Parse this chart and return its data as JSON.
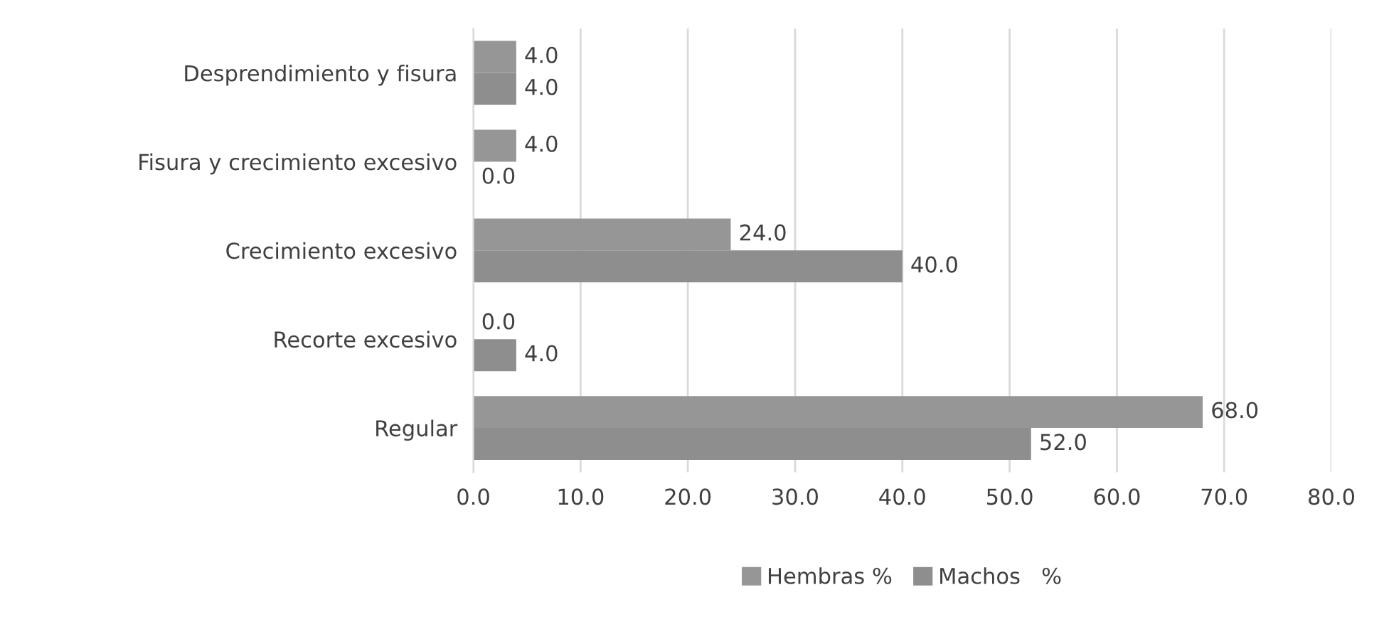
{
  "chart_data": {
    "type": "bar",
    "orientation": "horizontal",
    "categories": [
      "Desprendimiento y fisura",
      "Fisura y crecimiento excesivo",
      "Crecimiento excesivo",
      "Recorte excesivo",
      "Regular"
    ],
    "series": [
      {
        "name": "Hembras %",
        "color": "#969696",
        "values": [
          4,
          4,
          24,
          0,
          68
        ],
        "value_labels": [
          "4.0",
          "4.0",
          "24.0",
          "0.0",
          "68.0"
        ]
      },
      {
        "name": "Machos   %",
        "color": "#8e8e8e",
        "values": [
          4,
          0,
          40,
          4,
          52
        ],
        "value_labels": [
          "4.0",
          "0.0",
          "40.0",
          "4.0",
          "52.0"
        ]
      }
    ],
    "xlim": [
      0,
      80
    ],
    "xticks": [
      {
        "value": 0,
        "label": "0.0"
      },
      {
        "value": 10,
        "label": "10.0"
      },
      {
        "value": 20,
        "label": "20.0"
      },
      {
        "value": 30,
        "label": "30.0"
      },
      {
        "value": 40,
        "label": "40.0"
      },
      {
        "value": 50,
        "label": "50.0"
      },
      {
        "value": 60,
        "label": "60.0"
      },
      {
        "value": 70,
        "label": "70.0"
      },
      {
        "value": 80,
        "label": "80.0"
      }
    ],
    "grid": "x",
    "legend": "bottom"
  }
}
